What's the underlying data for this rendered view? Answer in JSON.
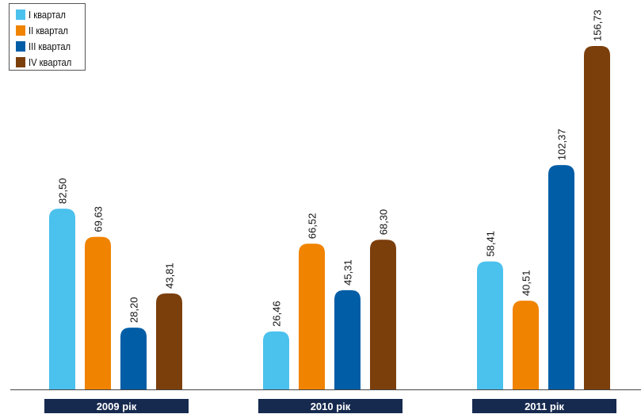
{
  "chart_data": {
    "type": "bar",
    "categories": [
      "2009 рік",
      "2010 рік",
      "2011 рік"
    ],
    "series": [
      {
        "name": "I квартал",
        "color": "#4bc1ed",
        "values": [
          82.5,
          26.46,
          58.41
        ],
        "labels": [
          "82,50",
          "26,46",
          "58,41"
        ]
      },
      {
        "name": "II квартал",
        "color": "#f08300",
        "values": [
          69.63,
          66.52,
          40.51
        ],
        "labels": [
          "69,63",
          "66,52",
          "40,51"
        ]
      },
      {
        "name": "III квартал",
        "color": "#005da6",
        "values": [
          28.2,
          45.31,
          102.37
        ],
        "labels": [
          "28,20",
          "45,31",
          "102,37"
        ]
      },
      {
        "name": "IV квартал",
        "color": "#7b3f0c",
        "values": [
          43.81,
          68.3,
          156.73
        ],
        "labels": [
          "43,81",
          "68,30",
          "156,73"
        ]
      }
    ],
    "ylim": [
      0,
      160
    ],
    "grid": false,
    "legend_position": "top-left",
    "category_label_background": "#162a4f"
  }
}
